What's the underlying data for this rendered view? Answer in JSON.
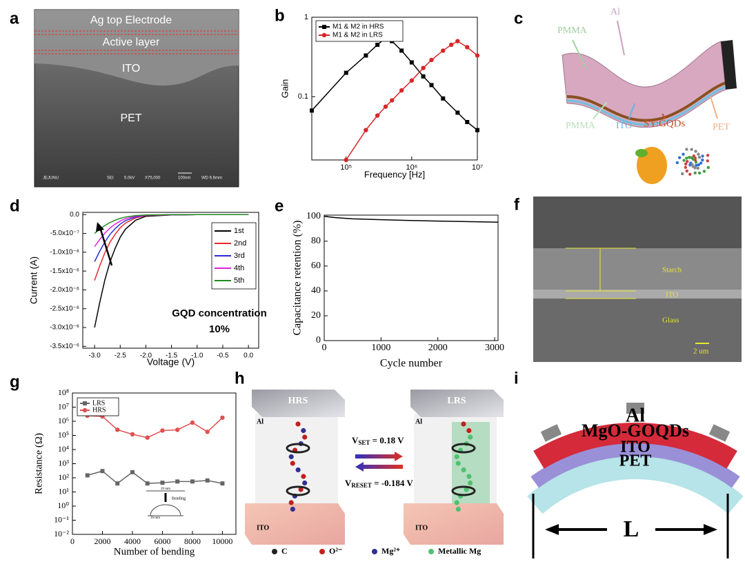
{
  "panel_labels": [
    "a",
    "b",
    "c",
    "d",
    "e",
    "f",
    "g",
    "h",
    "i"
  ],
  "sem_a": {
    "layers": [
      "Ag top Electrode",
      "Active layer",
      "ITO",
      "PET"
    ],
    "footer": [
      "JEJUNU",
      "SEI",
      "5.0kV",
      "X75,000",
      "100nm",
      "WD 6.6mm"
    ]
  },
  "diagram_c": {
    "labels": [
      "Al",
      "PMMA",
      "PMMA",
      "ITO",
      "SY:GQDs",
      "PET"
    ]
  },
  "sem_f": {
    "labels": [
      "Starch",
      "ITO",
      "Glass"
    ],
    "scale_bar": "2 um"
  },
  "diagram_h": {
    "states": [
      "HRS",
      "LRS"
    ],
    "electrodes": [
      "Al",
      "ITO",
      "Al",
      "ITO"
    ],
    "v_set": {
      "symbol": "V",
      "sub": "SET",
      "rest": " = 0.18 V"
    },
    "v_reset": {
      "symbol": "V",
      "sub": "RESET",
      "rest": " = -0.184 V"
    },
    "legend": [
      "C",
      "O²⁻",
      "Mg²⁺",
      "Metallic Mg"
    ]
  },
  "diagram_i": {
    "layers": [
      "Al",
      "MgO-GOQDs",
      "ITO",
      "PET"
    ],
    "length": "L"
  },
  "chart_data": [
    {
      "type": "line",
      "xscale": "log",
      "yscale": "log",
      "xlim": [
        30000,
        10000000
      ],
      "ylim": [
        0.016,
        1
      ],
      "xticks": [
        {
          "value": 100000,
          "label": "10⁵"
        },
        {
          "value": 1000000,
          "label": "10⁶"
        },
        {
          "value": 10000000,
          "label": "10⁷"
        }
      ],
      "yticks": [
        0.1,
        1
      ],
      "x_label": "Frequency [Hz]",
      "y_label": "Gain",
      "legend": "upper left",
      "series": [
        {
          "name": "M1 & M2 in HRS",
          "color": "#000000",
          "marker": "square",
          "x": [
            30000,
            100000,
            200000,
            300000,
            400000,
            500000,
            700000,
            1000000,
            1500000,
            2000000,
            3000000,
            5000000,
            7000000,
            10000000
          ],
          "values": [
            0.067,
            0.2,
            0.33,
            0.45,
            0.55,
            0.5,
            0.38,
            0.27,
            0.18,
            0.14,
            0.095,
            0.063,
            0.048,
            0.038
          ]
        },
        {
          "name": "M1 & M2 in LRS",
          "color": "#d62728",
          "marker": "circle",
          "x": [
            100000,
            200000,
            300000,
            400000,
            500000,
            700000,
            1000000,
            1500000,
            2000000,
            3000000,
            4000000,
            5000000,
            7000000,
            10000000
          ],
          "values": [
            0.016,
            0.038,
            0.058,
            0.075,
            0.09,
            0.12,
            0.16,
            0.23,
            0.29,
            0.38,
            0.45,
            0.5,
            0.42,
            0.33
          ]
        }
      ]
    },
    {
      "type": "line",
      "xlim": [
        -3.23,
        0.2
      ],
      "ylim": [
        -3.55e-06,
        6e-08
      ],
      "xticks": [
        {
          "value": -3.0,
          "label": "-3.0"
        },
        {
          "value": -2.5,
          "label": "-2.5"
        },
        {
          "value": -2.0,
          "label": "-2.0"
        },
        {
          "value": -1.5,
          "label": "-1.5"
        },
        {
          "value": -1.0,
          "label": "-1.0"
        },
        {
          "value": -0.5,
          "label": "-0.5"
        },
        {
          "value": 0,
          "label": "0.0"
        }
      ],
      "yticks": [
        {
          "value": 0,
          "label": "0.0"
        },
        {
          "value": -5e-07,
          "label": "-5.0x10⁻⁷"
        },
        {
          "value": -1e-06,
          "label": "-1.0x10⁻⁶"
        },
        {
          "value": -1.5e-06,
          "label": "-1.5x10⁻⁶"
        },
        {
          "value": -2e-06,
          "label": "-2.0x10⁻⁶"
        },
        {
          "value": -2.5e-06,
          "label": "-2.5x10⁻⁶"
        },
        {
          "value": -3e-06,
          "label": "-3.0x10⁻⁶"
        },
        {
          "value": -3.5e-06,
          "label": "-3.5x10⁻⁶"
        }
      ],
      "x_label": "Voltage (V)",
      "y_label": "Current (A)",
      "legend": "upper right",
      "annotations": [
        "GQD concentration",
        "10%"
      ],
      "x": [
        -3.0,
        -2.9,
        -2.8,
        -2.7,
        -2.6,
        -2.5,
        -2.4,
        -2.2,
        -2.0,
        -1.5,
        -1.0,
        -0.5,
        0.0
      ],
      "series": [
        {
          "name": "1st",
          "color": "#000000",
          "values": [
            -3e-06,
            -2.34e-06,
            -1.74e-06,
            -1.26e-06,
            -9e-07,
            -6e-07,
            -3.9e-07,
            -1.5e-07,
            -4.5e-08,
            -9e-09,
            0,
            0,
            0
          ]
        },
        {
          "name": "2nd",
          "color": "#e8262a",
          "values": [
            -1.75e-06,
            -1.365e-06,
            -1.015e-06,
            -7.35e-07,
            -5.25e-07,
            -3.5e-07,
            -2.28e-07,
            -8.8e-08,
            -2.6e-08,
            -5e-09,
            0,
            0,
            0
          ]
        },
        {
          "name": "3rd",
          "color": "#2a2ad8",
          "values": [
            -1.25e-06,
            -9.75e-07,
            -7.25e-07,
            -5.25e-07,
            -3.75e-07,
            -2.5e-07,
            -1.63e-07,
            -6.3e-08,
            -1.9e-08,
            -4e-09,
            0,
            0,
            0
          ]
        },
        {
          "name": "4th",
          "color": "#e020e0",
          "values": [
            -8.5e-07,
            -6.63e-07,
            -4.93e-07,
            -3.57e-07,
            -2.55e-07,
            -1.7e-07,
            -1.11e-07,
            -4.3e-08,
            -1.3e-08,
            -3e-09,
            0,
            0,
            0
          ]
        },
        {
          "name": "5th",
          "color": "#1f8a1f",
          "values": [
            -5e-07,
            -3.9e-07,
            -2.9e-07,
            -2.1e-07,
            -1.5e-07,
            -1e-07,
            -6.5e-08,
            -2.5e-08,
            -8e-09,
            -2e-09,
            0,
            0,
            0
          ]
        }
      ]
    },
    {
      "type": "line",
      "xlim": [
        0,
        3060
      ],
      "ylim": [
        0,
        101
      ],
      "xticks": [
        0,
        1000,
        2000,
        3000
      ],
      "yticks": [
        0,
        20,
        40,
        60,
        80,
        100
      ],
      "x_label": "Cycle number",
      "y_label": "Capacitance retention (%)",
      "series": [
        {
          "color": "#000000",
          "x": [
            0,
            200,
            500,
            1000,
            1500,
            2000,
            2500,
            3060
          ],
          "values": [
            100,
            99,
            98,
            97.3,
            96.7,
            96.2,
            95.8,
            95.3
          ]
        }
      ]
    },
    {
      "type": "line",
      "yscale": "log",
      "xlim": [
        0,
        10900
      ],
      "ylim": [
        0.01,
        100000000
      ],
      "xticks": [
        0,
        2000,
        4000,
        6000,
        8000,
        10000
      ],
      "yticks": [
        {
          "value": 0.01,
          "label": "10⁻²"
        },
        {
          "value": 0.1,
          "label": "10⁻¹"
        },
        {
          "value": 1,
          "label": "10⁰"
        },
        {
          "value": 10,
          "label": "10¹"
        },
        {
          "value": 100,
          "label": "10²"
        },
        {
          "value": 1000,
          "label": "10³"
        },
        {
          "value": 10000,
          "label": "10⁴"
        },
        {
          "value": 100000,
          "label": "10⁵"
        },
        {
          "value": 1000000,
          "label": "10⁶"
        },
        {
          "value": 10000000,
          "label": "10⁷"
        },
        {
          "value": 100000000,
          "label": "10⁸"
        }
      ],
      "x_label": "Number of bending",
      "y_label": "Resistance (Ω)",
      "legend": "upper left",
      "annotations": [
        "20 mm",
        "Bending",
        "16 mm"
      ],
      "x": [
        1000,
        2000,
        3000,
        4000,
        5000,
        6000,
        7000,
        8000,
        9000,
        10000
      ],
      "series": [
        {
          "name": "LRS",
          "color": "#666666",
          "marker": "square",
          "values": [
            150,
            300,
            40,
            250,
            40,
            45,
            55,
            55,
            65,
            40
          ]
        },
        {
          "name": "HRS",
          "color": "#e05050",
          "marker": "circle",
          "values": [
            2500000,
            2200000,
            250000,
            120000,
            70000,
            220000,
            250000,
            800000,
            180000,
            1800000
          ]
        }
      ]
    }
  ]
}
